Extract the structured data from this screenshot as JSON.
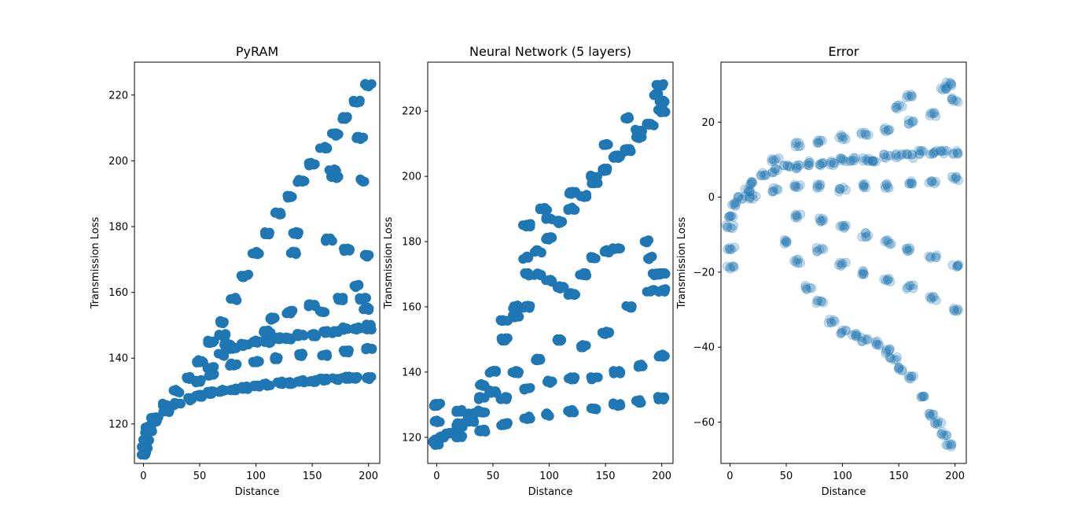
{
  "figure": {
    "background": "#ffffff",
    "marker_color": "#1f77b4"
  },
  "chart_data": [
    {
      "type": "scatter",
      "title": "PyRAM",
      "xlabel": "Distance",
      "ylabel": "Transmission Loss",
      "xlim": [
        -8,
        210
      ],
      "ylim": [
        108,
        230
      ],
      "xticks": [
        0,
        50,
        100,
        150,
        200
      ],
      "yticks": [
        120,
        140,
        160,
        180,
        200,
        220
      ],
      "marker_alpha": 1.0,
      "series": [
        {
          "points": [
            [
              0.5,
              111
            ],
            [
              1,
              113
            ],
            [
              2,
              115
            ],
            [
              3,
              117
            ],
            [
              5,
              119
            ],
            [
              10,
              122
            ],
            [
              20,
              126
            ],
            [
              30,
              130
            ],
            [
              40,
              134
            ],
            [
              50,
              139
            ],
            [
              60,
              145
            ],
            [
              70,
              151
            ],
            [
              80,
              158
            ],
            [
              90,
              165
            ],
            [
              100,
              172
            ],
            [
              110,
              178
            ],
            [
              120,
              184
            ],
            [
              130,
              189
            ],
            [
              140,
              194
            ],
            [
              150,
              199
            ],
            [
              160,
              204
            ],
            [
              170,
              208
            ],
            [
              180,
              213
            ],
            [
              190,
              218
            ],
            [
              200,
              223
            ],
            [
              5,
              118
            ],
            [
              10,
              121
            ],
            [
              20,
              124
            ],
            [
              30,
              126
            ],
            [
              40,
              127.5
            ],
            [
              50,
              128.5
            ],
            [
              60,
              129.5
            ],
            [
              70,
              130
            ],
            [
              80,
              130.5
            ],
            [
              90,
              131
            ],
            [
              100,
              131.5
            ],
            [
              110,
              132
            ],
            [
              120,
              132.5
            ],
            [
              130,
              132.5
            ],
            [
              140,
              133
            ],
            [
              150,
              133
            ],
            [
              160,
              133.5
            ],
            [
              170,
              133.5
            ],
            [
              180,
              134
            ],
            [
              190,
              134
            ],
            [
              200,
              134
            ],
            [
              50,
              133
            ],
            [
              60,
              137
            ],
            [
              70,
              141
            ],
            [
              80,
              143
            ],
            [
              90,
              144
            ],
            [
              100,
              145
            ],
            [
              110,
              145
            ],
            [
              120,
              146
            ],
            [
              130,
              146
            ],
            [
              140,
              147
            ],
            [
              150,
              147
            ],
            [
              160,
              148
            ],
            [
              170,
              148
            ],
            [
              180,
              149
            ],
            [
              190,
              149
            ],
            [
              200,
              149
            ],
            [
              60,
              135
            ],
            [
              80,
              138
            ],
            [
              100,
              139
            ],
            [
              120,
              140
            ],
            [
              140,
              141
            ],
            [
              160,
              141
            ],
            [
              180,
              142
            ],
            [
              200,
              143
            ],
            [
              70,
              147
            ],
            [
              75,
              144
            ],
            [
              110,
              148
            ],
            [
              115,
              152
            ],
            [
              130,
              154
            ],
            [
              135,
              178
            ],
            [
              133,
              172
            ],
            [
              150,
              156
            ],
            [
              165,
              176
            ],
            [
              160,
              154
            ],
            [
              175,
              158
            ],
            [
              180,
              173
            ],
            [
              190,
              162
            ],
            [
              192,
              207
            ],
            [
              195,
              158
            ],
            [
              197,
              171
            ],
            [
              198,
              155
            ],
            [
              200,
              150
            ],
            [
              168,
              197
            ],
            [
              170,
              195
            ],
            [
              193,
              194
            ]
          ]
        }
      ]
    },
    {
      "type": "scatter",
      "title": "Neural Network (5 layers)",
      "xlabel": "Distance",
      "ylabel": "Transmission Loss",
      "xlim": [
        -8,
        210
      ],
      "ylim": [
        112,
        235
      ],
      "xticks": [
        0,
        50,
        100,
        150,
        200
      ],
      "yticks": [
        120,
        140,
        160,
        180,
        200,
        220
      ],
      "marker_alpha": 1.0,
      "series": [
        {
          "points": [
            [
              0,
              118
            ],
            [
              5,
              120
            ],
            [
              10,
              121
            ],
            [
              20,
              123
            ],
            [
              30,
              125
            ],
            [
              40,
              132
            ],
            [
              50,
              140
            ],
            [
              60,
              150
            ],
            [
              70,
              160
            ],
            [
              80,
              170
            ],
            [
              90,
              177
            ],
            [
              100,
              181
            ],
            [
              110,
              186
            ],
            [
              120,
              190
            ],
            [
              130,
              194
            ],
            [
              140,
              198
            ],
            [
              150,
              202
            ],
            [
              160,
              206
            ],
            [
              170,
              208
            ],
            [
              180,
              212
            ],
            [
              190,
              216
            ],
            [
              200,
              220
            ],
            [
              0,
              125
            ],
            [
              20,
              128
            ],
            [
              40,
              136
            ],
            [
              60,
              156
            ],
            [
              80,
              175
            ],
            [
              100,
              187
            ],
            [
              120,
              195
            ],
            [
              140,
              200
            ],
            [
              160,
              206
            ],
            [
              180,
              214
            ],
            [
              200,
              223
            ],
            [
              0,
              119
            ],
            [
              20,
              120
            ],
            [
              40,
              122
            ],
            [
              60,
              124
            ],
            [
              80,
              126
            ],
            [
              100,
              127
            ],
            [
              120,
              128
            ],
            [
              140,
              129
            ],
            [
              160,
              130
            ],
            [
              180,
              131
            ],
            [
              200,
              132
            ],
            [
              20,
              124
            ],
            [
              40,
              128
            ],
            [
              60,
              132
            ],
            [
              80,
              135
            ],
            [
              100,
              137
            ],
            [
              120,
              138
            ],
            [
              140,
              138
            ],
            [
              160,
              140
            ],
            [
              180,
              142
            ],
            [
              200,
              145
            ],
            [
              30,
              127
            ],
            [
              50,
              134
            ],
            [
              70,
              140
            ],
            [
              90,
              144
            ],
            [
              110,
              150
            ],
            [
              130,
              148
            ],
            [
              150,
              152
            ],
            [
              170,
              160
            ],
            [
              190,
              165
            ],
            [
              200,
              170
            ],
            [
              70,
              157
            ],
            [
              80,
              160
            ],
            [
              90,
              170
            ],
            [
              100,
              168
            ],
            [
              110,
              166
            ],
            [
              120,
              164
            ],
            [
              130,
              170
            ],
            [
              140,
              175
            ],
            [
              150,
              177
            ],
            [
              160,
              178
            ],
            [
              185,
              180
            ],
            [
              190,
              175
            ],
            [
              195,
              170
            ],
            [
              200,
              165
            ],
            [
              95,
              190
            ],
            [
              80,
              185
            ],
            [
              0,
              130
            ],
            [
              150,
              210
            ],
            [
              198,
              228
            ],
            [
              195,
              225
            ],
            [
              170,
              218
            ]
          ]
        }
      ]
    },
    {
      "type": "scatter",
      "title": "Error",
      "xlabel": "Distance",
      "ylabel": "Transmission Loss",
      "xlim": [
        -8,
        210
      ],
      "ylim": [
        -71,
        36
      ],
      "xticks": [
        0,
        50,
        100,
        150,
        200
      ],
      "yticks": [
        -60,
        -40,
        -20,
        0,
        20
      ],
      "marker_alpha": 0.25,
      "series": [
        {
          "points": [
            [
              0,
              -8
            ],
            [
              1,
              -14
            ],
            [
              0.5,
              -19
            ],
            [
              2,
              -5
            ],
            [
              5,
              -2
            ],
            [
              10,
              0
            ],
            [
              15,
              2
            ],
            [
              20,
              4
            ],
            [
              30,
              6
            ],
            [
              40,
              7
            ],
            [
              50,
              8
            ],
            [
              60,
              8
            ],
            [
              70,
              9
            ],
            [
              80,
              9
            ],
            [
              90,
              9
            ],
            [
              100,
              10
            ],
            [
              110,
              10
            ],
            [
              120,
              10
            ],
            [
              130,
              10
            ],
            [
              140,
              11
            ],
            [
              150,
              11
            ],
            [
              160,
              11
            ],
            [
              170,
              12
            ],
            [
              180,
              12
            ],
            [
              190,
              12
            ],
            [
              200,
              12
            ],
            [
              20,
              0
            ],
            [
              40,
              2
            ],
            [
              60,
              3
            ],
            [
              80,
              3
            ],
            [
              100,
              2
            ],
            [
              120,
              3
            ],
            [
              140,
              3
            ],
            [
              160,
              4
            ],
            [
              180,
              4
            ],
            [
              200,
              5
            ],
            [
              40,
              10
            ],
            [
              60,
              14
            ],
            [
              80,
              15
            ],
            [
              100,
              16
            ],
            [
              120,
              17
            ],
            [
              140,
              18
            ],
            [
              160,
              20
            ],
            [
              180,
              22
            ],
            [
              195,
              30
            ],
            [
              200,
              26
            ],
            [
              60,
              -5
            ],
            [
              80,
              -6
            ],
            [
              100,
              -8
            ],
            [
              120,
              -10
            ],
            [
              140,
              -12
            ],
            [
              160,
              -14
            ],
            [
              180,
              -16
            ],
            [
              200,
              -18
            ],
            [
              50,
              -12
            ],
            [
              60,
              -17
            ],
            [
              70,
              -24
            ],
            [
              80,
              -28
            ],
            [
              90,
              -33
            ],
            [
              100,
              -36
            ],
            [
              110,
              -37
            ],
            [
              120,
              -38
            ],
            [
              130,
              -39
            ],
            [
              140,
              -41
            ],
            [
              145,
              -43
            ],
            [
              150,
              -46
            ],
            [
              160,
              -48
            ],
            [
              170,
              -53
            ],
            [
              180,
              -58
            ],
            [
              185,
              -60
            ],
            [
              190,
              -63
            ],
            [
              195,
              -66
            ],
            [
              80,
              -14
            ],
            [
              100,
              -18
            ],
            [
              120,
              -20
            ],
            [
              140,
              -22
            ],
            [
              160,
              -24
            ],
            [
              180,
              -27
            ],
            [
              200,
              -30
            ],
            [
              150,
              24
            ],
            [
              160,
              27
            ],
            [
              190,
              29
            ]
          ]
        }
      ]
    }
  ]
}
